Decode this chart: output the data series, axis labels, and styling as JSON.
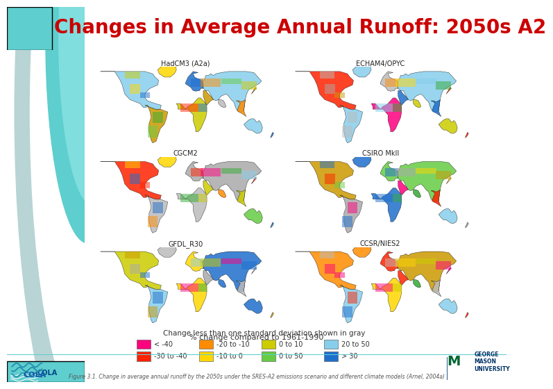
{
  "title": "Changes in Average Annual Runoff: 2050s A2",
  "title_color": "#CC0000",
  "title_fontsize": 20,
  "title_fontweight": "bold",
  "background_color": "#FFFFFF",
  "teal_color": "#5ECECE",
  "map_labels": [
    [
      "HadCM3 (A2a)",
      "ECHAM4/OPYC"
    ],
    [
      "CGCM2",
      "CSIRO MkII"
    ],
    [
      "GFDL_R30",
      "CCSR/NIES2"
    ]
  ],
  "legend_title": "% change compared to 1961-1990",
  "legend_row1": [
    {
      "label": "< -40",
      "color": "#FF007F"
    },
    {
      "label": "-20 to -10",
      "color": "#FF8C00"
    },
    {
      "label": "0 to 10",
      "color": "#CCCC00"
    },
    {
      "label": "20 to 50",
      "color": "#87CEEB"
    }
  ],
  "legend_row2": [
    {
      "label": "-30 to -40",
      "color": "#FF2200"
    },
    {
      "label": "-10 to 0",
      "color": "#FFD700"
    },
    {
      "label": "0 to 50",
      "color": "#66CC44"
    },
    {
      "label": "> 30",
      "color": "#1E6FCC"
    }
  ],
  "legend_note": "Change less than one standard deviation shown in gray",
  "figure_caption": "Figure 3.1. Change in average annual runoff by the 2050s under the SRES-A2 emissions scenario and different climate models (Arnel, 2004a)",
  "map_seeds": [
    42,
    17,
    99,
    55,
    7,
    123
  ],
  "left_panel_color": "#E8F4F4",
  "gray_teal": "#B8D4D4"
}
